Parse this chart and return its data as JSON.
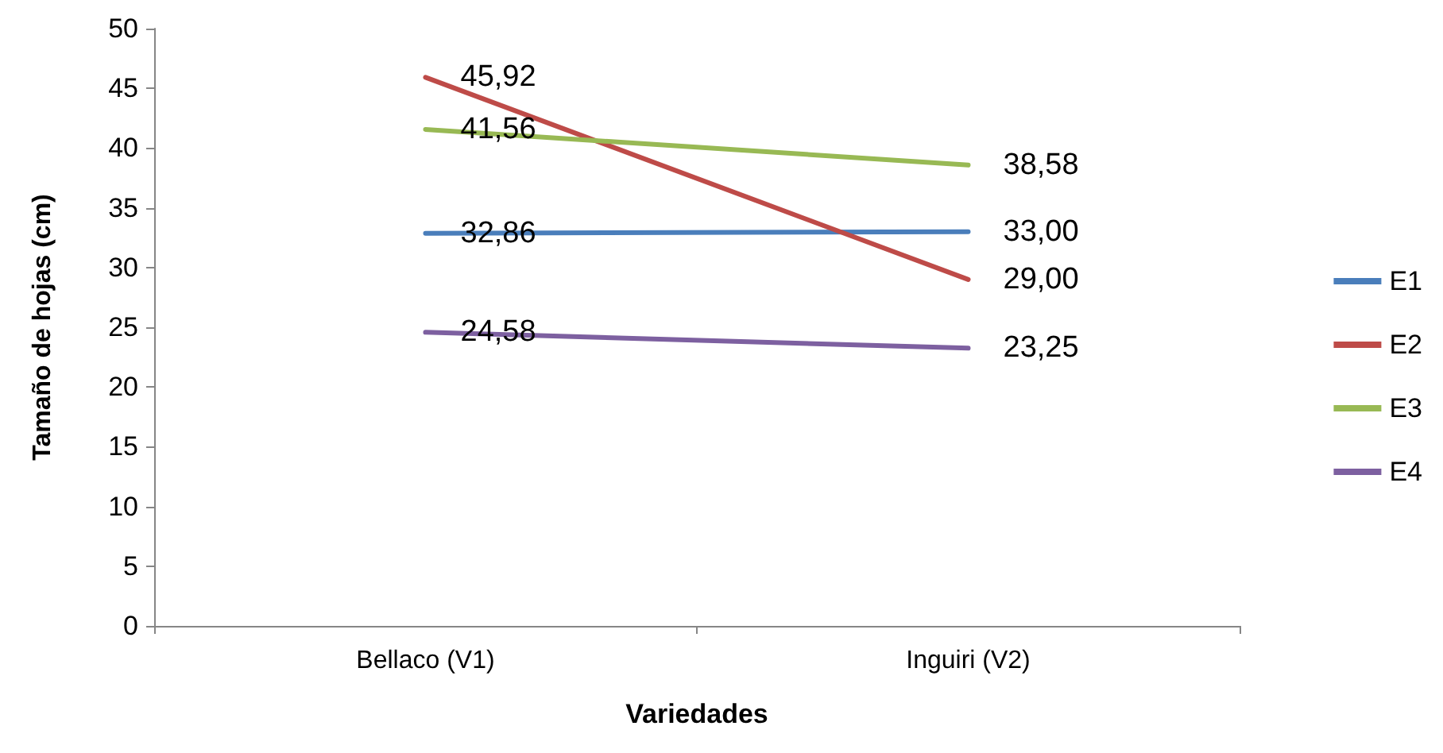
{
  "chart_data": {
    "type": "line",
    "xlabel": "Variedades",
    "ylabel": "Tamaño de hojas (cm)",
    "categories": [
      "Bellaco (V1)",
      "Inguiri (V2)"
    ],
    "series": [
      {
        "name": "E1",
        "color": "#4a7ebb",
        "values": [
          32.86,
          33.0
        ],
        "value_labels": [
          "32,86",
          "33,00"
        ]
      },
      {
        "name": "E2",
        "color": "#be4b48",
        "values": [
          45.92,
          29.0
        ],
        "value_labels": [
          "45,92",
          "29,00"
        ]
      },
      {
        "name": "E3",
        "color": "#98b954",
        "values": [
          41.56,
          38.58
        ],
        "value_labels": [
          "41,56",
          "38,58"
        ]
      },
      {
        "name": "E4",
        "color": "#7d60a0",
        "values": [
          24.58,
          23.25
        ],
        "value_labels": [
          "24,58",
          "23,25"
        ]
      }
    ],
    "ylim": [
      0,
      50
    ],
    "yticks": [
      0,
      5,
      10,
      15,
      20,
      25,
      30,
      35,
      40,
      45,
      50
    ],
    "grid": false,
    "legend": "right",
    "marker": "none",
    "line_style": "solid"
  }
}
